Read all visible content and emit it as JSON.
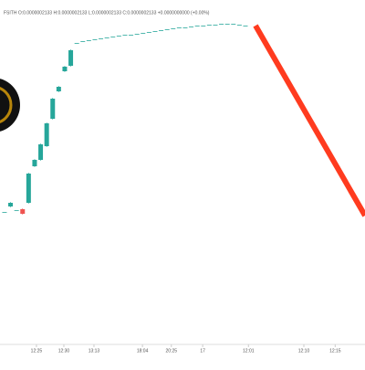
{
  "chart_data": {
    "type": "candlestick",
    "title": "FSITH O:0.0000002133 H:0.0000002133 L:0.0000002133 C:0.0000002133 +0.0000000000 (+0.00%)",
    "up_color": "#26a69a",
    "down_color": "#ef5350",
    "xlim": [
      -0.75,
      59.85
    ],
    "ylim": [
      0,
      400
    ],
    "xticks": [
      {
        "value": 5.3,
        "label": "12:25"
      },
      {
        "value": 9.85,
        "label": "12:30"
      },
      {
        "value": 14.85,
        "label": "13:13"
      },
      {
        "value": 22.9,
        "label": "18:04"
      },
      {
        "value": 27.7,
        "label": "20:25"
      },
      {
        "value": 32.9,
        "label": "17"
      },
      {
        "value": 40.5,
        "label": "12:01"
      },
      {
        "value": 49.7,
        "label": "12:10"
      },
      {
        "value": 54.9,
        "label": "12:15"
      }
    ],
    "open": [
      168,
      174,
      170,
      171,
      178,
      218,
      225,
      240,
      270,
      300,
      322,
      328,
      353,
      355,
      356,
      357,
      358,
      359,
      360,
      361,
      362,
      362,
      363,
      364,
      365,
      366,
      367,
      368,
      369,
      370,
      370,
      371,
      372,
      372,
      373,
      373,
      374,
      374,
      374,
      373,
      372
    ],
    "high": [
      168,
      179,
      170,
      172,
      211,
      226,
      243,
      266,
      293,
      306,
      328,
      346,
      353,
      355,
      356,
      357,
      358,
      359,
      360,
      361,
      362,
      362,
      363,
      364,
      365,
      366,
      367,
      368,
      369,
      370,
      370,
      371,
      372,
      372,
      373,
      373,
      374,
      374,
      374,
      373,
      372
    ],
    "low": [
      168,
      173,
      170,
      165,
      177,
      217,
      224,
      239,
      269,
      299,
      321,
      327,
      353,
      355,
      356,
      357,
      358,
      359,
      360,
      361,
      362,
      362,
      363,
      364,
      365,
      366,
      367,
      368,
      369,
      370,
      370,
      371,
      372,
      372,
      373,
      373,
      374,
      374,
      374,
      373,
      372
    ],
    "close": [
      168,
      178,
      170,
      166,
      210,
      225,
      242,
      265,
      292,
      305,
      327,
      345,
      353,
      355,
      356,
      357,
      358,
      359,
      360,
      361,
      362,
      362,
      363,
      364,
      365,
      366,
      367,
      368,
      369,
      370,
      370,
      371,
      372,
      372,
      373,
      373,
      374,
      374,
      374,
      373,
      372
    ]
  }
}
